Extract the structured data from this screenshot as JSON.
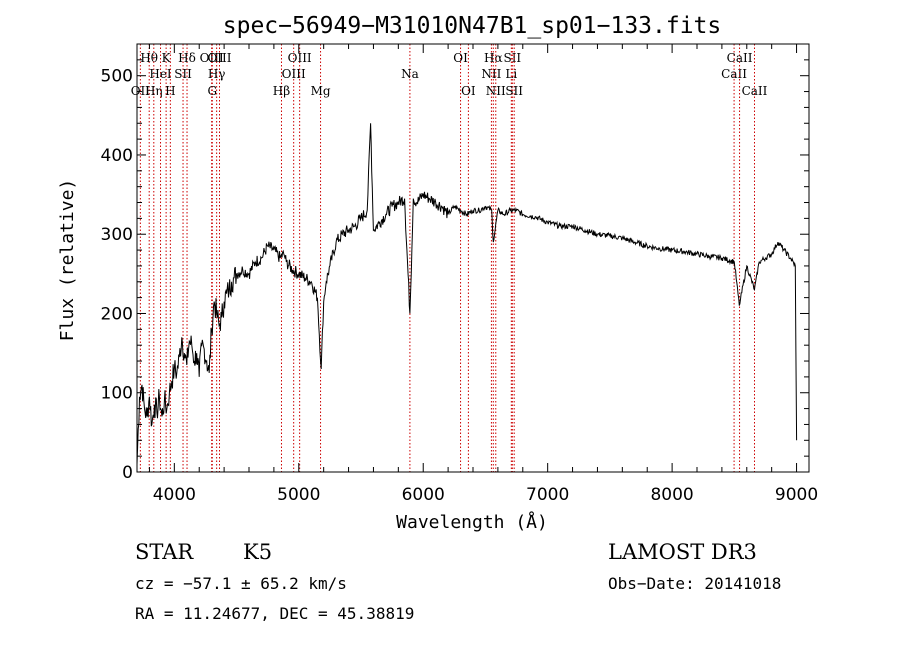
{
  "chart_data": {
    "type": "line",
    "title": "spec−56949−M31010N47B1_sp01−133.fits",
    "xlabel": "Wavelength (Å)",
    "ylabel": "Flux (relative)",
    "xlim": [
      3700,
      9100
    ],
    "ylim": [
      0,
      540
    ],
    "xticks": [
      4000,
      5000,
      6000,
      7000,
      8000,
      9000
    ],
    "yticks": [
      0,
      100,
      200,
      300,
      400,
      500
    ],
    "grid": false,
    "series": [
      {
        "x": [
          3700,
          3720,
          3740,
          3760,
          3780,
          3800,
          3820,
          3840,
          3860,
          3880,
          3900,
          3920,
          3940,
          3960,
          3980,
          4000,
          4020,
          4040,
          4060,
          4080,
          4100,
          4120,
          4140,
          4160,
          4180,
          4200,
          4220,
          4240,
          4260,
          4280,
          4300,
          4320,
          4340,
          4360,
          4380,
          4400,
          4420,
          4440,
          4460,
          4480,
          4500,
          4550,
          4600,
          4650,
          4700,
          4750,
          4800,
          4850,
          4880,
          4900,
          4950,
          5000,
          5050,
          5100,
          5150,
          5180,
          5200,
          5220,
          5250,
          5300,
          5350,
          5400,
          5450,
          5500,
          5550,
          5577,
          5600,
          5650,
          5700,
          5750,
          5800,
          5850,
          5893,
          5920,
          5950,
          6000,
          6050,
          6100,
          6150,
          6200,
          6250,
          6300,
          6350,
          6400,
          6450,
          6500,
          6550,
          6563,
          6600,
          6650,
          6700,
          6750,
          6800,
          6900,
          7000,
          7100,
          7200,
          7300,
          7400,
          7500,
          7600,
          7700,
          7800,
          7900,
          8000,
          8100,
          8200,
          8300,
          8400,
          8500,
          8540,
          8600,
          8662,
          8700,
          8750,
          8800,
          8850,
          8900,
          8950,
          8990,
          9000
        ],
        "y": [
          10,
          95,
          110,
          80,
          70,
          95,
          60,
          85,
          75,
          95,
          70,
          90,
          80,
          100,
          115,
          130,
          125,
          145,
          170,
          150,
          135,
          165,
          160,
          140,
          150,
          120,
          160,
          155,
          140,
          125,
          180,
          215,
          200,
          185,
          195,
          215,
          225,
          230,
          240,
          245,
          250,
          255,
          250,
          265,
          270,
          285,
          280,
          270,
          275,
          265,
          255,
          250,
          245,
          240,
          220,
          130,
          215,
          240,
          260,
          290,
          300,
          305,
          310,
          320,
          330,
          440,
          305,
          315,
          325,
          335,
          340,
          345,
          200,
          345,
          340,
          350,
          345,
          340,
          335,
          325,
          335,
          330,
          325,
          330,
          330,
          335,
          330,
          290,
          330,
          325,
          330,
          330,
          325,
          322,
          315,
          310,
          310,
          305,
          300,
          298,
          295,
          290,
          285,
          282,
          280,
          278,
          275,
          272,
          270,
          265,
          210,
          260,
          230,
          265,
          270,
          275,
          290,
          280,
          270,
          260,
          40
        ]
      }
    ],
    "spectral_lines": [
      {
        "name": "Hθ",
        "x": 3798,
        "row": 1
      },
      {
        "name": "Hη",
        "x": 3835,
        "row": 3
      },
      {
        "name": "HeI",
        "x": 3889,
        "row": 2
      },
      {
        "name": "K",
        "x": 3934,
        "row": 1
      },
      {
        "name": "H",
        "x": 3968,
        "row": 3
      },
      {
        "name": "SII",
        "x": 4070,
        "row": 2
      },
      {
        "name": "Hδ",
        "x": 4102,
        "row": 1
      },
      {
        "name": "OII",
        "x": 3727,
        "row": 3
      },
      {
        "name": "OIII",
        "x": 4300,
        "row": 1
      },
      {
        "name": "G",
        "x": 4305,
        "row": 3
      },
      {
        "name": "Hγ",
        "x": 4340,
        "row": 2
      },
      {
        "name": "OIII",
        "x": 4363,
        "row": 1
      },
      {
        "name": "Hβ",
        "x": 4861,
        "row": 3
      },
      {
        "name": "OIII",
        "x": 4959,
        "row": 2
      },
      {
        "name": "OIII",
        "x": 5007,
        "row": 1
      },
      {
        "name": "Mg",
        "x": 5175,
        "row": 3
      },
      {
        "name": "Na",
        "x": 5893,
        "row": 2
      },
      {
        "name": "OI",
        "x": 6300,
        "row": 1
      },
      {
        "name": "OI",
        "x": 6363,
        "row": 3
      },
      {
        "name": "NII",
        "x": 6548,
        "row": 2
      },
      {
        "name": "Hα",
        "x": 6563,
        "row": 1
      },
      {
        "name": "NII",
        "x": 6583,
        "row": 3
      },
      {
        "name": "Li",
        "x": 6708,
        "row": 2
      },
      {
        "name": "SII",
        "x": 6716,
        "row": 1
      },
      {
        "name": "SII",
        "x": 6731,
        "row": 3
      },
      {
        "name": "CaII",
        "x": 8498,
        "row": 2
      },
      {
        "name": "CaII",
        "x": 8542,
        "row": 1
      },
      {
        "name": "CaII",
        "x": 8662,
        "row": 3
      }
    ],
    "marker_color": "#cc0000"
  },
  "info": {
    "class": "STAR",
    "subclass": "K5",
    "survey": "LAMOST DR3",
    "cz": "cz = −57.1 ± 65.2 km/s",
    "obs_date": "Obs−Date: 20141018",
    "coords": "RA =  11.24677, DEC =  45.38819"
  }
}
